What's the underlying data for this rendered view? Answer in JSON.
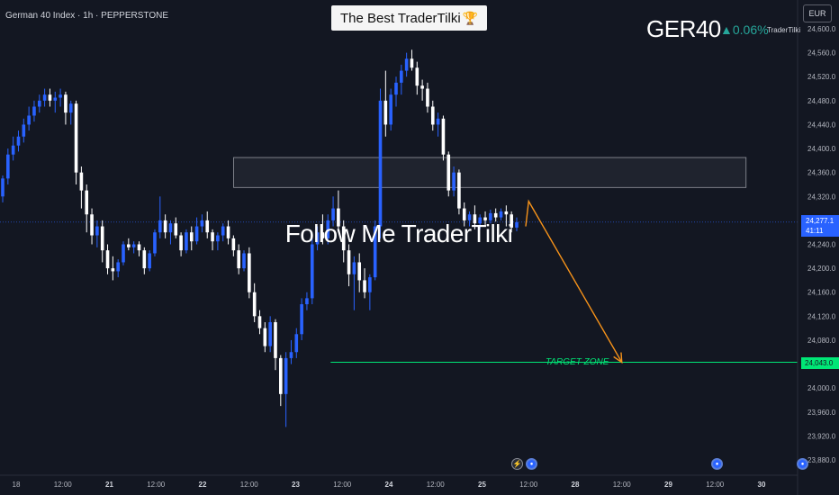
{
  "symbol_info": "German 40 Index · 1h · PEPPERSTONE",
  "title_banner": "The Best TraderTilki",
  "title_icon": "trophy-icon",
  "ticker": {
    "name": "GER40",
    "change": "▲0.06%",
    "brand": "TraderTilki"
  },
  "currency": "EUR",
  "watermark": "Follow Me TraderTilki",
  "target_label": "TARGET ZONE",
  "current_price": {
    "value": "24,277.1",
    "countdown": "41:11"
  },
  "target_price": "24,043.0",
  "colors": {
    "background": "#131722",
    "bull": "#2962ff",
    "bear": "#ffffff",
    "target": "#00e676",
    "arrow": "#f7931a",
    "zone": "#2a2e39"
  },
  "events": [
    {
      "type": "flash-icon",
      "time": "25 10:00"
    },
    {
      "type": "flag-icon",
      "time": "25 12:00"
    },
    {
      "type": "flag-icon",
      "time": "29 12:00"
    },
    {
      "type": "flag-icon",
      "time": "30 12:00"
    }
  ],
  "chart_data": {
    "type": "candlestick",
    "interval": "1h",
    "ylim": [
      23860,
      24620
    ],
    "y_ticks": [
      "24,600.0",
      "24,560.0",
      "24,520.0",
      "24,480.0",
      "24,440.0",
      "24,400.0",
      "24,360.0",
      "24,320.0",
      "24,280.0",
      "24,240.0",
      "24,200.0",
      "24,160.0",
      "24,120.0",
      "24,080.0",
      "24,040.0",
      "24,000.0",
      "23,960.0",
      "23,920.0",
      "23,880.0"
    ],
    "x_ticks": [
      "18",
      "12:00",
      "21",
      "12:00",
      "22",
      "12:00",
      "23",
      "12:00",
      "24",
      "12:00",
      "25",
      "12:00",
      "28",
      "12:00",
      "29",
      "12:00",
      "30"
    ],
    "bold_x_ticks": [
      "21",
      "22",
      "23",
      "24",
      "25",
      "28",
      "29",
      "30"
    ],
    "resistance_zone": {
      "low": 24335,
      "high": 24385,
      "from": "22 08:00",
      "to": "29 20:00"
    },
    "current_price": 24277.1,
    "target_level": 24043.0,
    "projection_arrow": [
      {
        "time": "25 09:00",
        "price": 24270
      },
      {
        "time": "25 12:00",
        "price": 24312
      },
      {
        "time": "28 12:00",
        "price": 24043
      }
    ],
    "candles": [
      [
        24320,
        24355,
        24310,
        24350
      ],
      [
        24350,
        24400,
        24340,
        24390
      ],
      [
        24390,
        24420,
        24380,
        24405
      ],
      [
        24405,
        24430,
        24395,
        24420
      ],
      [
        24420,
        24450,
        24410,
        24440
      ],
      [
        24440,
        24470,
        24430,
        24455
      ],
      [
        24455,
        24480,
        24445,
        24470
      ],
      [
        24470,
        24490,
        24460,
        24480
      ],
      [
        24480,
        24500,
        24470,
        24490
      ],
      [
        24490,
        24500,
        24470,
        24480
      ],
      [
        24480,
        24495,
        24460,
        24485
      ],
      [
        24485,
        24500,
        24470,
        24490
      ],
      [
        24490,
        24495,
        24440,
        24460
      ],
      [
        24460,
        24480,
        24440,
        24475
      ],
      [
        24475,
        24480,
        24340,
        24360
      ],
      [
        24360,
        24370,
        24300,
        24330
      ],
      [
        24330,
        24340,
        24260,
        24290
      ],
      [
        24290,
        24300,
        24240,
        24255
      ],
      [
        24255,
        24280,
        24235,
        24270
      ],
      [
        24270,
        24280,
        24210,
        24230
      ],
      [
        24230,
        24240,
        24190,
        24200
      ],
      [
        24200,
        24220,
        24180,
        24195
      ],
      [
        24195,
        24215,
        24185,
        24210
      ],
      [
        24210,
        24245,
        24205,
        24240
      ],
      [
        24240,
        24250,
        24230,
        24235
      ],
      [
        24235,
        24245,
        24225,
        24240
      ],
      [
        24240,
        24245,
        24220,
        24230
      ],
      [
        24230,
        24235,
        24190,
        24200
      ],
      [
        24200,
        24230,
        24195,
        24225
      ],
      [
        24225,
        24265,
        24220,
        24260
      ],
      [
        24260,
        24320,
        24250,
        24280
      ],
      [
        24280,
        24290,
        24250,
        24260
      ],
      [
        24260,
        24280,
        24240,
        24275
      ],
      [
        24275,
        24285,
        24250,
        24255
      ],
      [
        24255,
        24260,
        24220,
        24230
      ],
      [
        24230,
        24265,
        24225,
        24260
      ],
      [
        24260,
        24270,
        24230,
        24245
      ],
      [
        24245,
        24285,
        24240,
        24270
      ],
      [
        24270,
        24290,
        24260,
        24280
      ],
      [
        24280,
        24295,
        24250,
        24260
      ],
      [
        24260,
        24265,
        24230,
        24245
      ],
      [
        24245,
        24260,
        24230,
        24255
      ],
      [
        24255,
        24275,
        24245,
        24270
      ],
      [
        24270,
        24280,
        24240,
        24250
      ],
      [
        24250,
        24255,
        24220,
        24230
      ],
      [
        24230,
        24240,
        24190,
        24200
      ],
      [
        24200,
        24230,
        24195,
        24225
      ],
      [
        24225,
        24235,
        24150,
        24160
      ],
      [
        24160,
        24175,
        24110,
        24120
      ],
      [
        24120,
        24130,
        24090,
        24100
      ],
      [
        24100,
        24110,
        24060,
        24070
      ],
      [
        24070,
        24120,
        24060,
        24110
      ],
      [
        24110,
        24115,
        24030,
        24050
      ],
      [
        24050,
        24055,
        23970,
        23990
      ],
      [
        23990,
        24060,
        23935,
        24050
      ],
      [
        24050,
        24080,
        24040,
        24060
      ],
      [
        24060,
        24100,
        24050,
        24090
      ],
      [
        24090,
        24150,
        24080,
        24140
      ],
      [
        24140,
        24160,
        24130,
        24150
      ],
      [
        24150,
        24250,
        24140,
        24240
      ],
      [
        24240,
        24270,
        24230,
        24260
      ],
      [
        24260,
        24290,
        24240,
        24250
      ],
      [
        24250,
        24290,
        24240,
        24280
      ],
      [
        24280,
        24320,
        24270,
        24300
      ],
      [
        24300,
        24330,
        24260,
        24270
      ],
      [
        24270,
        24280,
        24210,
        24230
      ],
      [
        24230,
        24240,
        24170,
        24190
      ],
      [
        24190,
        24220,
        24130,
        24210
      ],
      [
        24210,
        24225,
        24160,
        24180
      ],
      [
        24180,
        24200,
        24150,
        24160
      ],
      [
        24160,
        24190,
        24130,
        24185
      ],
      [
        24185,
        24280,
        24180,
        24270
      ],
      [
        24270,
        24500,
        24250,
        24480
      ],
      [
        24480,
        24530,
        24420,
        24440
      ],
      [
        24440,
        24500,
        24430,
        24490
      ],
      [
        24490,
        24520,
        24470,
        24510
      ],
      [
        24510,
        24540,
        24490,
        24530
      ],
      [
        24530,
        24560,
        24520,
        24550
      ],
      [
        24550,
        24565,
        24530,
        24535
      ],
      [
        24535,
        24545,
        24490,
        24505
      ],
      [
        24505,
        24515,
        24480,
        24500
      ],
      [
        24500,
        24510,
        24460,
        24470
      ],
      [
        24470,
        24480,
        24430,
        24440
      ],
      [
        24440,
        24460,
        24420,
        24450
      ],
      [
        24450,
        24455,
        24380,
        24390
      ],
      [
        24390,
        24395,
        24320,
        24330
      ],
      [
        24330,
        24370,
        24320,
        24360
      ],
      [
        24360,
        24365,
        24290,
        24300
      ],
      [
        24300,
        24310,
        24270,
        24280
      ],
      [
        24280,
        24295,
        24270,
        24290
      ],
      [
        24290,
        24305,
        24265,
        24275
      ],
      [
        24275,
        24290,
        24265,
        24285
      ],
      [
        24285,
        24295,
        24270,
        24280
      ],
      [
        24280,
        24298,
        24275,
        24292
      ],
      [
        24292,
        24300,
        24278,
        24285
      ],
      [
        24285,
        24300,
        24280,
        24295
      ],
      [
        24295,
        24305,
        24270,
        24290
      ],
      [
        24290,
        24295,
        24260,
        24268
      ],
      [
        24268,
        24285,
        24262,
        24277
      ]
    ]
  }
}
